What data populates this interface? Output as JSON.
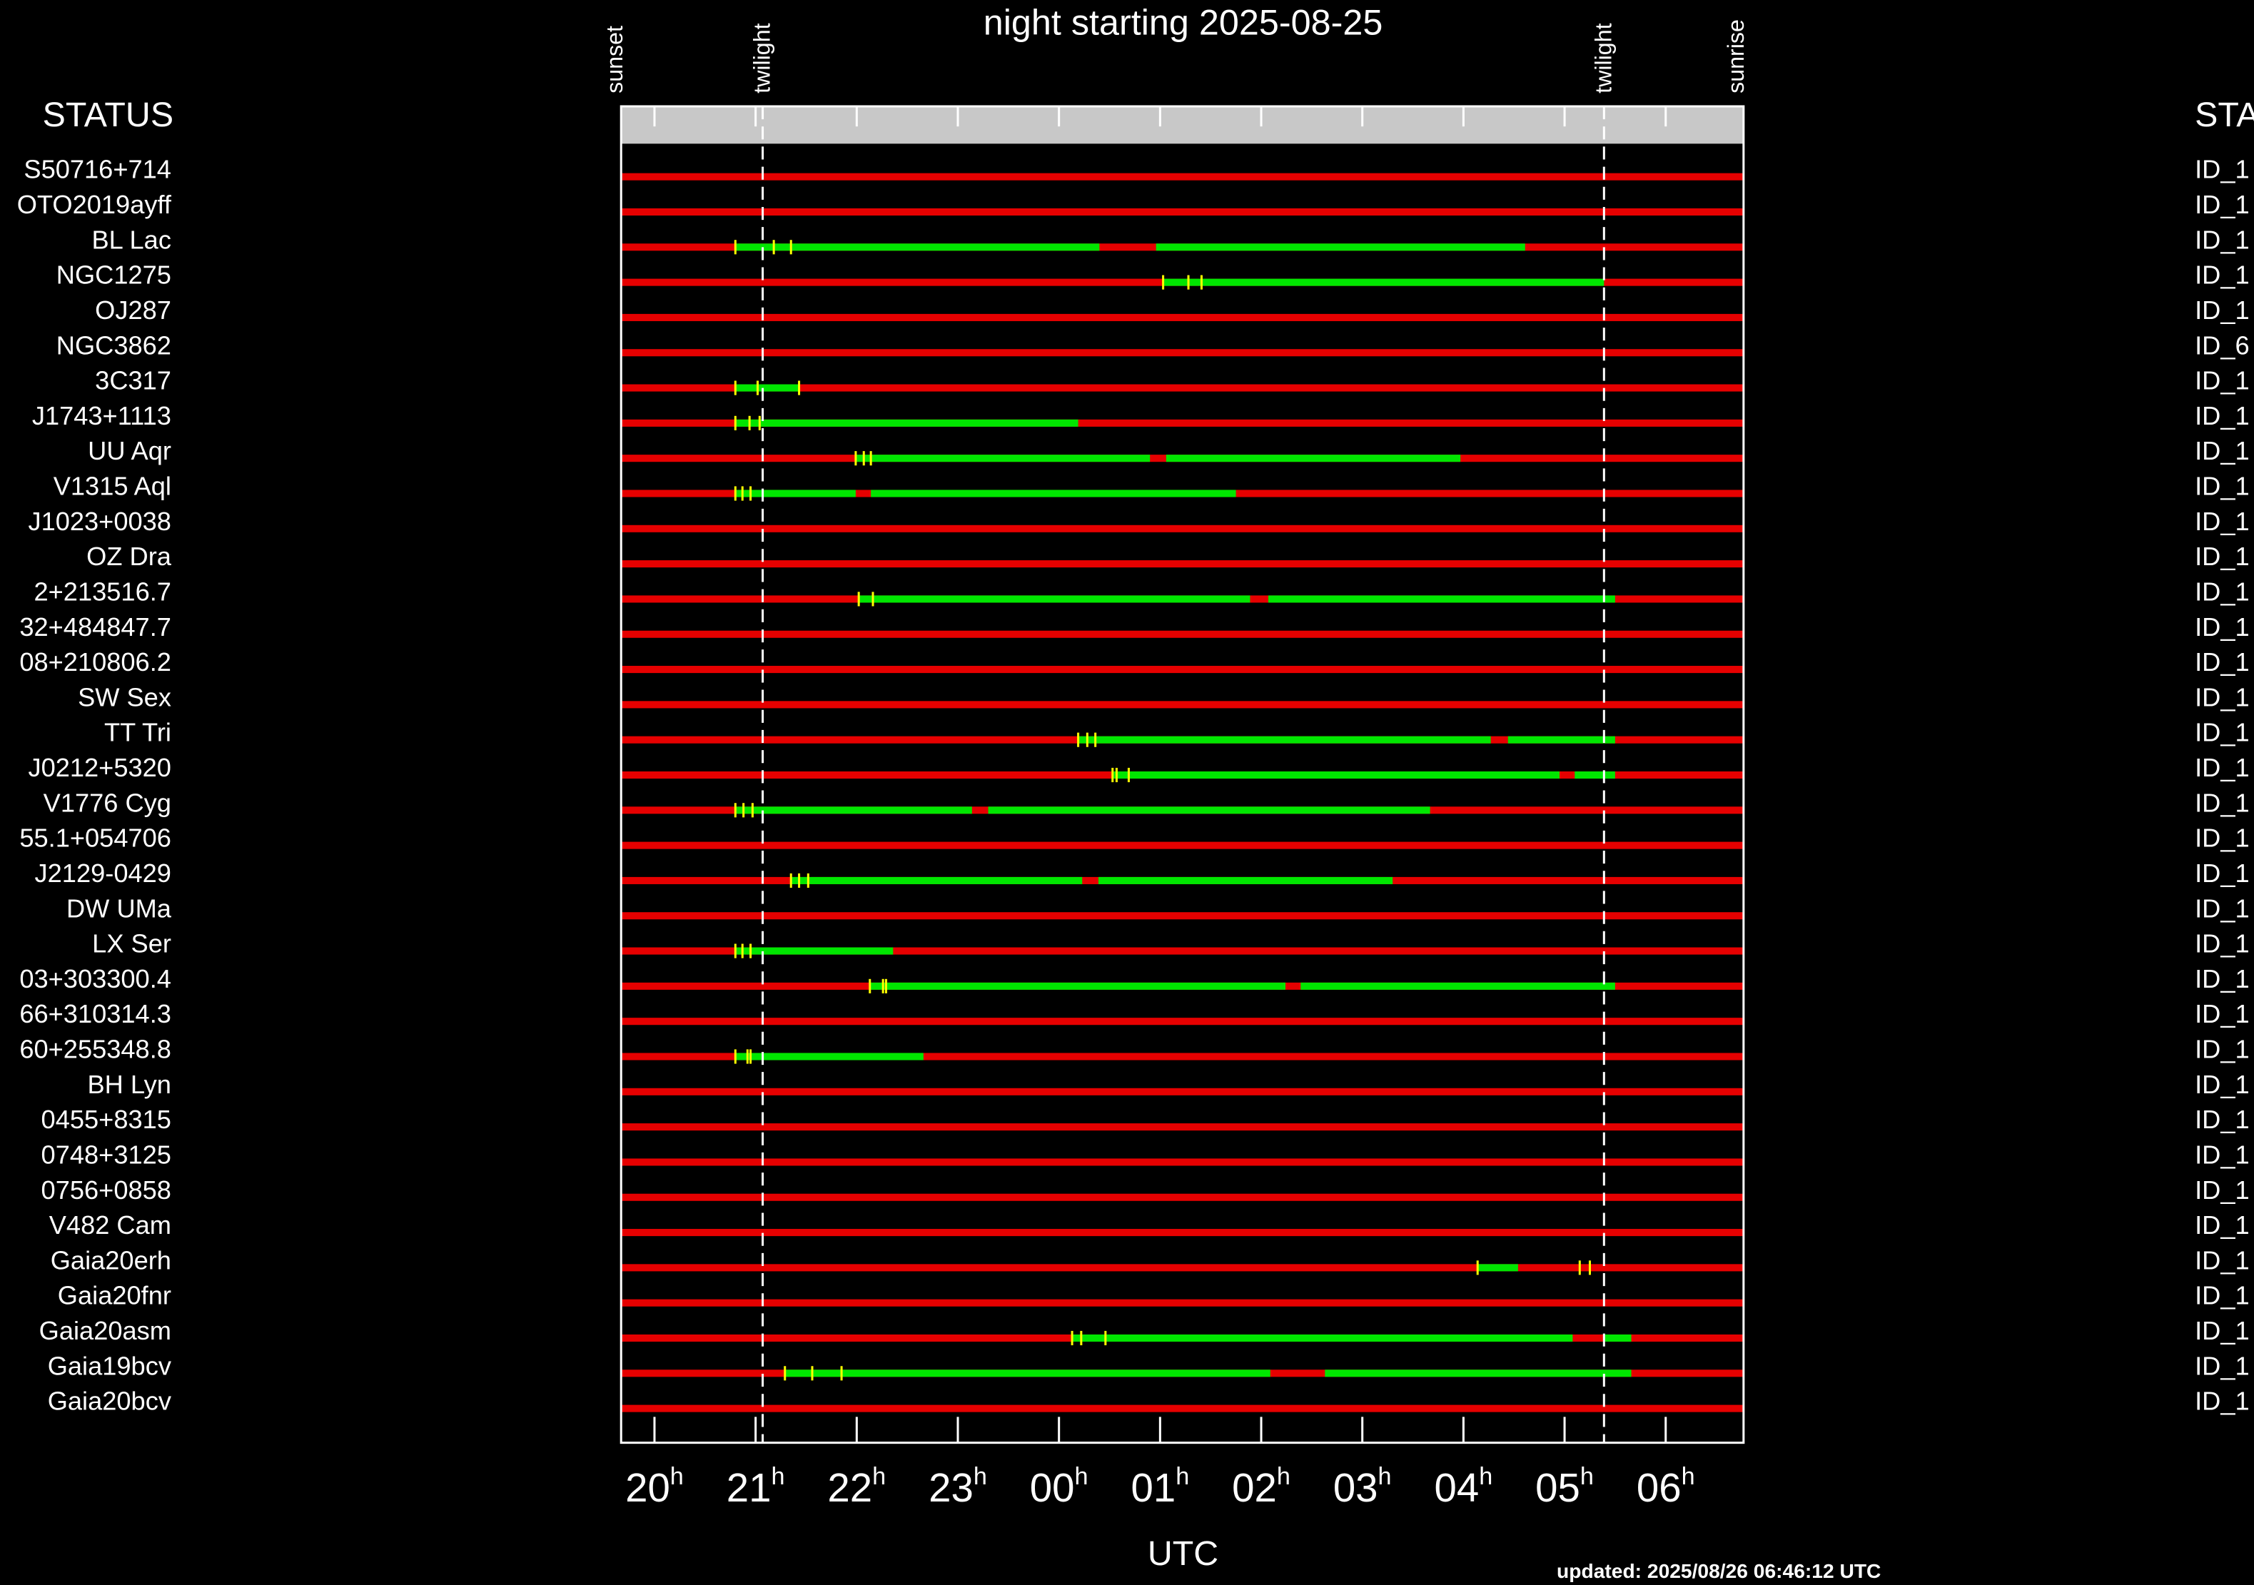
{
  "chart_data": {
    "type": "timeline",
    "title": "night starting 2025-08-25",
    "status_header": "STATUS",
    "xlabel": "UTC",
    "updated": "updated: 2025/08/26 06:46:12 UTC",
    "xlim": [
      19.67,
      30.77
    ],
    "xticks": [
      20,
      21,
      22,
      23,
      {
        "value": 24,
        "label": "00"
      },
      {
        "value": 25,
        "label": "01"
      },
      {
        "value": 26,
        "label": "02"
      },
      {
        "value": 27,
        "label": "03"
      },
      {
        "value": 28,
        "label": "04"
      },
      {
        "value": 29,
        "label": "05"
      },
      {
        "value": 30,
        "label": "06"
      }
    ],
    "xtick_unit": "h",
    "markers": [
      {
        "label": "sunset",
        "value": 19.61,
        "dashed": false
      },
      {
        "label": "twilight",
        "value": 21.07,
        "dashed": true
      },
      {
        "label": "twilight",
        "value": 29.39,
        "dashed": true
      },
      {
        "label": "sunrise",
        "value": 30.7,
        "dashed": false
      }
    ],
    "bar_color": "#e60000",
    "segment_color": "#00e600",
    "tick_color": "#ffff00",
    "rows": [
      {
        "name": "S50716+714",
        "id": "ID_1",
        "segments": [],
        "ticks": []
      },
      {
        "name": "OTO2019ayff",
        "id": "ID_1",
        "segments": [],
        "ticks": []
      },
      {
        "name": "BL Lac",
        "id": "ID_1",
        "segments": [
          [
            20.8,
            24.4
          ],
          [
            24.96,
            28.61
          ]
        ],
        "ticks": [
          20.8,
          21.18,
          21.35
        ]
      },
      {
        "name": "NGC1275",
        "id": "ID_1",
        "segments": [
          [
            25.03,
            29.39
          ]
        ],
        "ticks": [
          25.03,
          25.28,
          25.41
        ]
      },
      {
        "name": "OJ287",
        "id": "ID_1",
        "segments": [],
        "ticks": []
      },
      {
        "name": "NGC3862",
        "id": "ID_6",
        "segments": [],
        "ticks": []
      },
      {
        "name": "3C317",
        "id": "ID_1",
        "segments": [
          [
            20.8,
            21.43
          ]
        ],
        "ticks": [
          20.8,
          21.02,
          21.43
        ]
      },
      {
        "name": "J1743+1113",
        "id": "ID_1",
        "segments": [
          [
            20.8,
            24.19
          ]
        ],
        "ticks": [
          20.8,
          20.94,
          21.04
        ]
      },
      {
        "name": "UU Aqr",
        "id": "ID_1",
        "segments": [
          [
            21.99,
            24.9
          ],
          [
            25.06,
            27.97
          ]
        ],
        "ticks": [
          21.99,
          22.07,
          22.14
        ]
      },
      {
        "name": "V1315 Aql",
        "id": "ID_1",
        "segments": [
          [
            20.8,
            21.99
          ],
          [
            22.14,
            25.75
          ]
        ],
        "ticks": [
          20.8,
          20.87,
          20.95
        ]
      },
      {
        "name": "J1023+0038",
        "id": "ID_1",
        "segments": [],
        "ticks": []
      },
      {
        "name": "OZ Dra",
        "id": "ID_1",
        "segments": [],
        "ticks": []
      },
      {
        "name": "2+213516.7",
        "id": "ID_1",
        "segments": [
          [
            22.02,
            25.89
          ],
          [
            26.07,
            29.5
          ]
        ],
        "ticks": [
          22.02,
          22.16
        ]
      },
      {
        "name": "32+484847.7",
        "id": "ID_1",
        "segments": [],
        "ticks": []
      },
      {
        "name": "08+210806.2",
        "id": "ID_1",
        "segments": [],
        "ticks": []
      },
      {
        "name": "SW Sex",
        "id": "ID_1",
        "segments": [],
        "ticks": []
      },
      {
        "name": "TT Tri",
        "id": "ID_1",
        "segments": [
          [
            24.19,
            28.27
          ],
          [
            28.44,
            29.5
          ]
        ],
        "ticks": [
          24.19,
          24.28,
          24.36
        ]
      },
      {
        "name": "J0212+5320",
        "id": "ID_1",
        "segments": [
          [
            24.53,
            28.95
          ],
          [
            29.1,
            29.5
          ]
        ],
        "ticks": [
          24.53,
          24.57,
          24.69
        ]
      },
      {
        "name": "V1776 Cyg",
        "id": "ID_1",
        "segments": [
          [
            20.8,
            23.14
          ],
          [
            23.3,
            27.67
          ]
        ],
        "ticks": [
          20.8,
          20.88,
          20.97
        ]
      },
      {
        "name": "55.1+054706",
        "id": "ID_1",
        "segments": [],
        "ticks": []
      },
      {
        "name": "J2129-0429",
        "id": "ID_1",
        "segments": [
          [
            21.35,
            24.23
          ],
          [
            24.39,
            27.3
          ]
        ],
        "ticks": [
          21.35,
          21.43,
          21.52
        ]
      },
      {
        "name": "DW UMa",
        "id": "ID_1",
        "segments": [],
        "ticks": []
      },
      {
        "name": "LX Ser",
        "id": "ID_1",
        "segments": [
          [
            20.8,
            22.36
          ]
        ],
        "ticks": [
          20.8,
          20.87,
          20.95
        ]
      },
      {
        "name": "03+303300.4",
        "id": "ID_1",
        "segments": [
          [
            22.13,
            26.24
          ],
          [
            26.39,
            29.5
          ]
        ],
        "ticks": [
          22.13,
          22.26,
          22.29
        ]
      },
      {
        "name": "66+310314.3",
        "id": "ID_1",
        "segments": [],
        "ticks": []
      },
      {
        "name": "60+255348.8",
        "id": "ID_1",
        "segments": [
          [
            20.8,
            22.66
          ]
        ],
        "ticks": [
          20.8,
          20.92,
          20.95
        ]
      },
      {
        "name": "BH Lyn",
        "id": "ID_1",
        "segments": [],
        "ticks": []
      },
      {
        "name": "0455+8315",
        "id": "ID_1",
        "segments": [],
        "ticks": []
      },
      {
        "name": "0748+3125",
        "id": "ID_1",
        "segments": [],
        "ticks": []
      },
      {
        "name": "0756+0858",
        "id": "ID_1",
        "segments": [],
        "ticks": []
      },
      {
        "name": "V482 Cam",
        "id": "ID_1",
        "segments": [],
        "ticks": []
      },
      {
        "name": "Gaia20erh",
        "id": "ID_1",
        "segments": [
          [
            28.14,
            28.54
          ]
        ],
        "ticks": [
          28.14,
          29.15,
          29.25
        ]
      },
      {
        "name": "Gaia20fnr",
        "id": "ID_1",
        "segments": [],
        "ticks": []
      },
      {
        "name": "Gaia20asm",
        "id": "ID_1",
        "segments": [
          [
            24.13,
            29.08
          ],
          [
            29.39,
            29.66
          ]
        ],
        "ticks": [
          24.13,
          24.22,
          24.46
        ]
      },
      {
        "name": "Gaia19bcv",
        "id": "ID_1",
        "segments": [
          [
            21.29,
            26.09
          ],
          [
            26.63,
            29.66
          ]
        ],
        "ticks": [
          21.29,
          21.56,
          21.85
        ]
      },
      {
        "name": "Gaia20bcv",
        "id": "ID_1",
        "segments": [],
        "ticks": []
      }
    ]
  }
}
